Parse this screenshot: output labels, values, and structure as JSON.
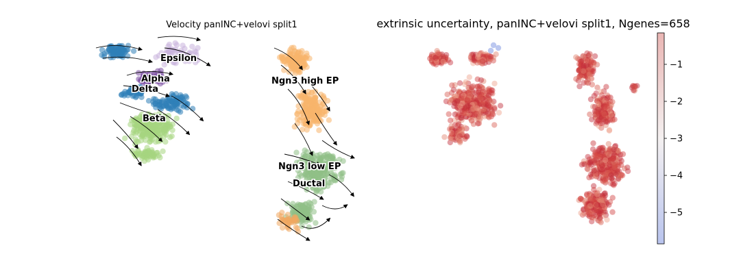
{
  "chart_data": [
    {
      "type": "scatter",
      "title": "Velocity panINC+velovi split1",
      "overlay": "streamlines",
      "grid": false,
      "axes": "hidden",
      "clusters": [
        {
          "name": "Epsilon",
          "color": "#c9b3dc"
        },
        {
          "name": "Alpha",
          "color": "#7b4ea3"
        },
        {
          "name": "Delta",
          "color": "#2f7fb8"
        },
        {
          "name": "Beta",
          "color": "#a6d67f"
        },
        {
          "name": "Ngn3 high EP",
          "color": "#f7b56b"
        },
        {
          "name": "Ngn3 low EP",
          "color": "#8fbf86"
        },
        {
          "name": "Ductal",
          "color": "#f0a860"
        }
      ]
    },
    {
      "type": "scatter",
      "title": "extrinsic uncertainty, panINC+velovi split1, Ngenes=658",
      "color_scale": "coolwarm",
      "colorbar": {
        "ticks": [
          "−1",
          "−2",
          "−3",
          "−4",
          "−5"
        ],
        "tick_values": [
          -1,
          -2,
          -3,
          -4,
          -5
        ],
        "range": [
          -5.85,
          -0.15
        ]
      },
      "grid": false,
      "axes": "hidden"
    }
  ]
}
